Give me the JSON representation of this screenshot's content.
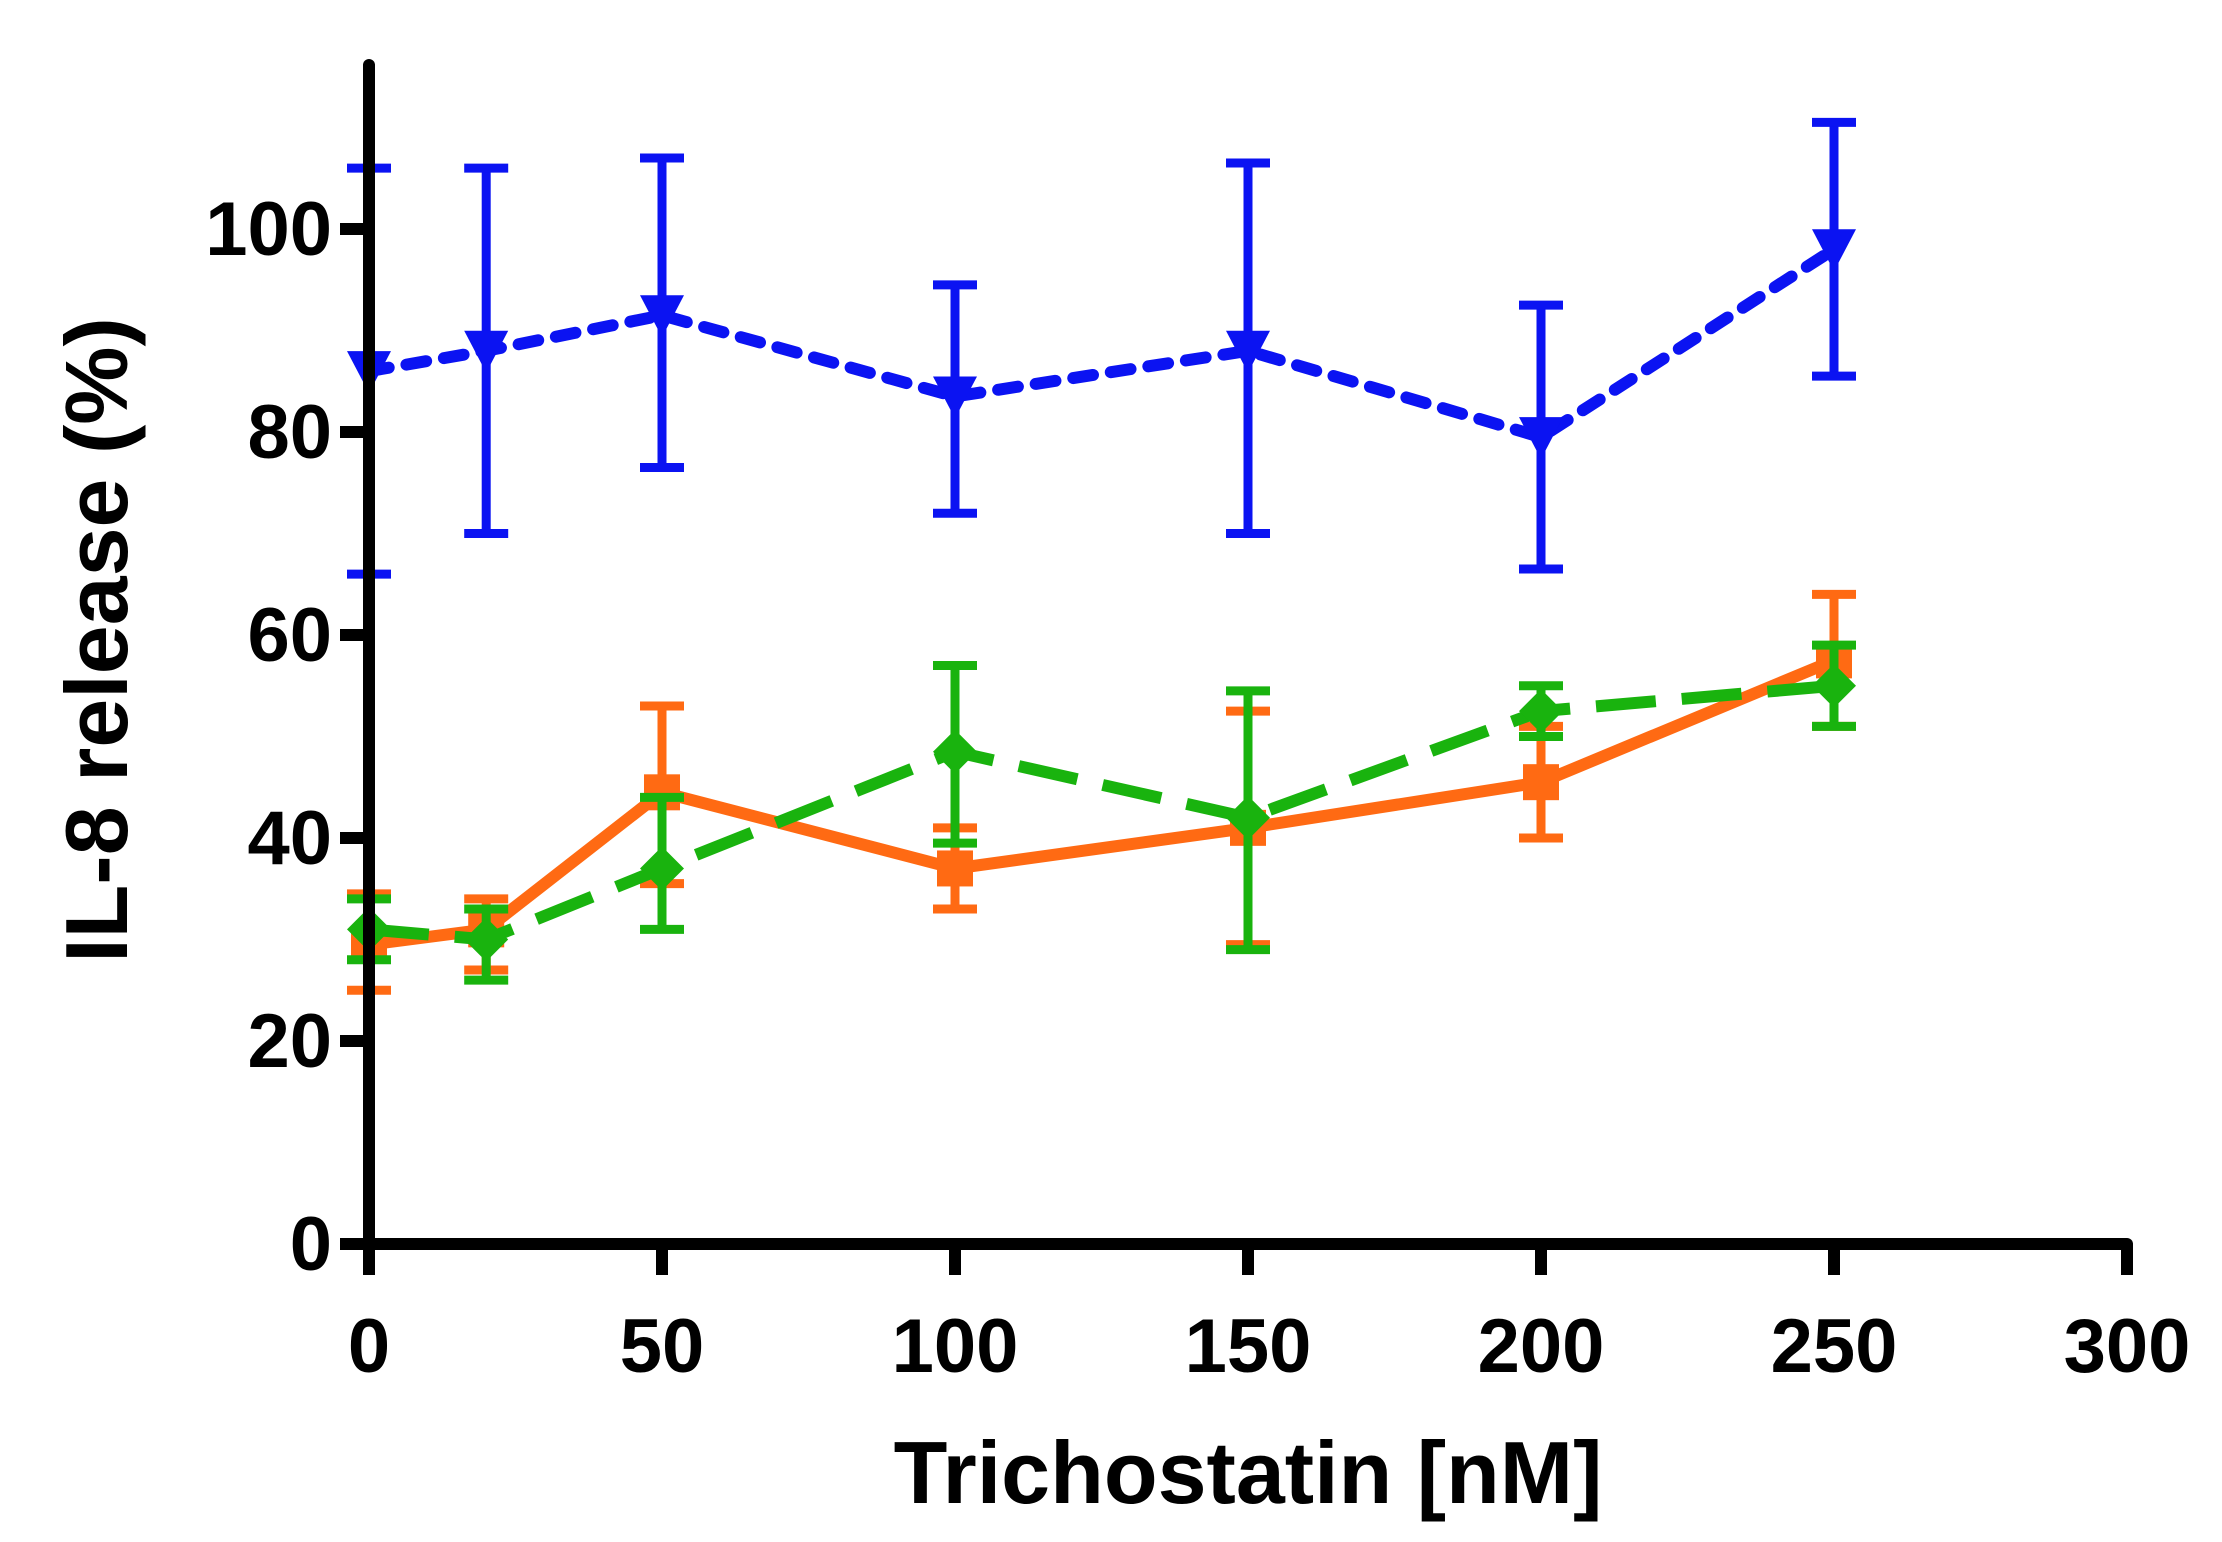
{
  "chart_data": {
    "type": "line",
    "title": "",
    "xlabel": "Trichostatin [nM]",
    "ylabel": "IL-8 release (%)",
    "xlim": [
      0,
      300
    ],
    "ylim": [
      0,
      115
    ],
    "xticks": [
      0,
      50,
      100,
      150,
      200,
      250,
      300
    ],
    "yticks": [
      0,
      20,
      40,
      60,
      80,
      100
    ],
    "grid": false,
    "legend": "none",
    "x": [
      0,
      20,
      50,
      100,
      150,
      200,
      250
    ],
    "series": [
      {
        "name": "blue-dotted",
        "color": "#0b13f2",
        "line": "dotted",
        "marker": "triangle-down",
        "values": [
          86,
          88,
          91.5,
          83.5,
          88,
          79.5,
          98
        ],
        "err_low": [
          66,
          70,
          76.5,
          72,
          70,
          66.5,
          85.5
        ],
        "err_high": [
          106,
          106,
          107,
          94.5,
          106.5,
          92.5,
          110.5
        ]
      },
      {
        "name": "orange-solid",
        "color": "#ff6a13",
        "line": "solid",
        "marker": "square",
        "values": [
          29.5,
          31,
          44.5,
          37,
          41,
          45.5,
          57.5
        ],
        "err_low": [
          25,
          27,
          35.5,
          33,
          29.5,
          40,
          51
        ],
        "err_high": [
          34.5,
          34,
          53,
          41,
          52.5,
          51,
          64
        ]
      },
      {
        "name": "green-dashed",
        "color": "#19b30e",
        "line": "dashed",
        "marker": "diamond",
        "values": [
          31,
          30,
          37,
          48.5,
          42,
          52.5,
          55
        ],
        "err_low": [
          28,
          26,
          31,
          39.5,
          29,
          50,
          51
        ],
        "err_high": [
          34,
          33,
          44,
          57,
          54.5,
          55,
          59
        ]
      }
    ]
  }
}
